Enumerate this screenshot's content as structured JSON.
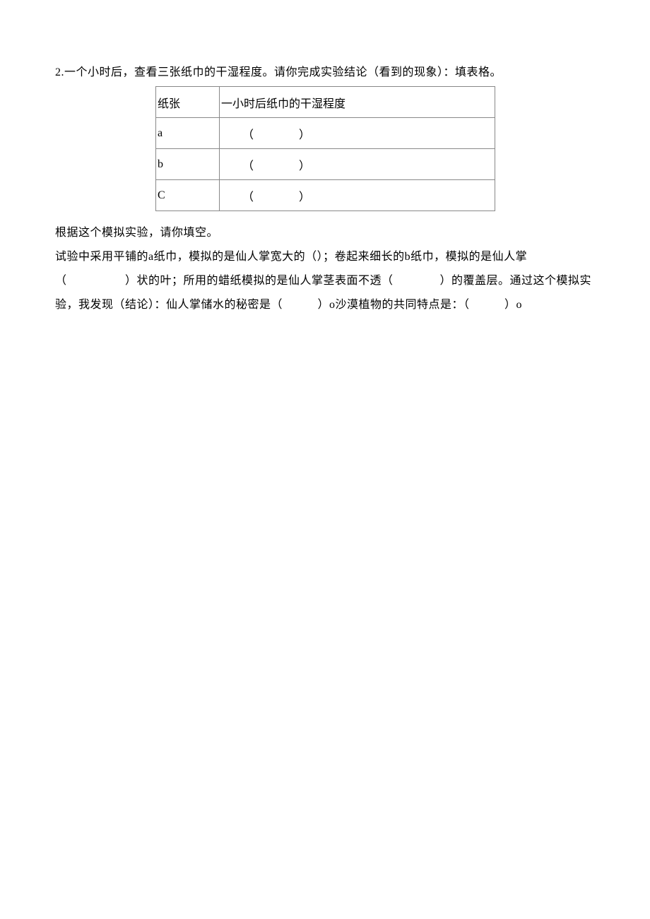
{
  "question_line": "2.一个小时后，查看三张纸巾的干湿程度。请你完成实验结论（看到的现象）：填表格。",
  "table": {
    "header_col1": "纸张",
    "header_col2": "一小时后纸巾的干湿程度",
    "rows": [
      {
        "label": "a",
        "value": "（　　　　）"
      },
      {
        "label": "b",
        "value": "（　　　　）"
      },
      {
        "label": "C",
        "value": "（　　　　）"
      }
    ]
  },
  "para1": "根据这个模拟实验，请你填空。",
  "para2": "试验中采用平铺的a纸巾，模拟的是仙人掌宽大的（）；卷起来细长的b纸巾，模拟的是仙人掌（　　　　　）状的叶；所用的蜡纸模拟的是仙人掌茎表面不透（　　　　）的覆盖层。通过这个模拟实验，我发现（结论）：仙人掌储水的秘密是（　　　）o沙漠植物的共同特点是：（　　　）o"
}
